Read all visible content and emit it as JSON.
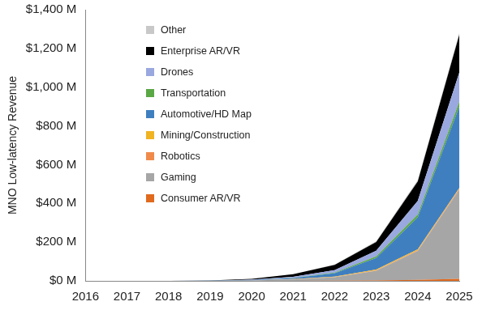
{
  "chart_data": {
    "type": "area",
    "stacked": true,
    "grid": false,
    "legend": "upper left",
    "y_label": "MNO Low-latency Revenue",
    "categories": [
      "2016",
      "2017",
      "2018",
      "2019",
      "2020",
      "2021",
      "2022",
      "2023",
      "2024",
      "2025"
    ],
    "ylim": [
      0,
      1400
    ],
    "yticks": [
      {
        "value": 0,
        "label": "$0 M"
      },
      {
        "value": 200,
        "label": "$200 M"
      },
      {
        "value": 400,
        "label": "$400 M"
      },
      {
        "value": 600,
        "label": "$600 M"
      },
      {
        "value": 800,
        "label": "$800 M"
      },
      {
        "value": 1000,
        "label": "$1,000 M"
      },
      {
        "value": 1200,
        "label": "$1,200 M"
      },
      {
        "value": 1400,
        "label": "$1,400 M"
      }
    ],
    "series": [
      {
        "name": "Consumer AR/VR",
        "color": "#e06a1e",
        "values": [
          0,
          0,
          0,
          0,
          0,
          0.5,
          1,
          2,
          5,
          10
        ]
      },
      {
        "name": "Gaming",
        "color": "#a6a6a6",
        "values": [
          0,
          0,
          0,
          0.5,
          2,
          7,
          18,
          50,
          150,
          460
        ]
      },
      {
        "name": "Robotics",
        "color": "#f08a4b",
        "values": [
          0,
          0,
          0,
          0,
          0,
          0.5,
          1,
          2,
          3,
          5
        ]
      },
      {
        "name": "Mining/Construction",
        "color": "#f0b323",
        "values": [
          0,
          0,
          0,
          0,
          0.5,
          1,
          2,
          4,
          5,
          5
        ]
      },
      {
        "name": "Automotive/HD Map",
        "color": "#3f7fc0",
        "values": [
          0,
          0,
          0,
          0.5,
          1.5,
          6,
          18,
          60,
          165,
          420
        ]
      },
      {
        "name": "Transportation",
        "color": "#5aa845",
        "values": [
          0,
          0,
          0,
          0,
          0.5,
          1,
          3,
          8,
          15,
          25
        ]
      },
      {
        "name": "Drones",
        "color": "#9aa8e0",
        "values": [
          0,
          0,
          0,
          0.5,
          1.5,
          5,
          12,
          30,
          70,
          150
        ]
      },
      {
        "name": "Enterprise AR/VR",
        "color": "#000000",
        "values": [
          0,
          0,
          0,
          0.5,
          4,
          13,
          28,
          45,
          100,
          195
        ]
      },
      {
        "name": "Other",
        "color": "#c8c8c8",
        "values": [
          0,
          0,
          0,
          0,
          0,
          1,
          2,
          4,
          7,
          10
        ]
      }
    ]
  }
}
